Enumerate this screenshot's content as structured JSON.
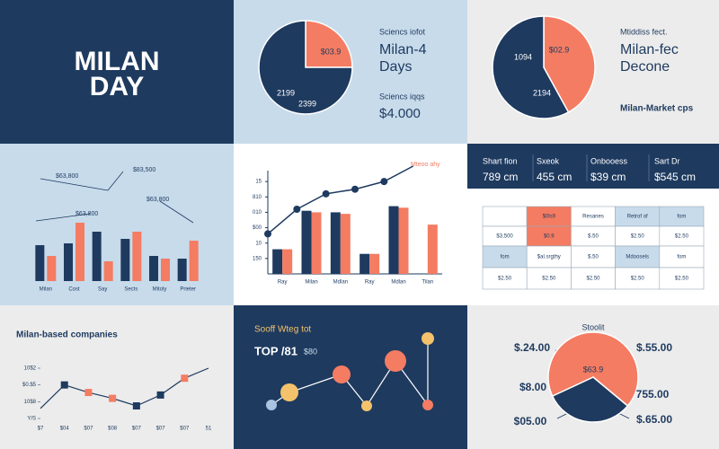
{
  "hero": {
    "title_line1": "MILAN",
    "title_line2": "DAY"
  },
  "panel2": {
    "kicker": "Sciencs iofot",
    "title_line1": "Milan-4",
    "title_line2": "Days",
    "note": "Sciencs iqqs",
    "amount": "$4.000"
  },
  "panel3": {
    "kicker": "Mtiddiss fect.",
    "title_line1": "Milan-fec",
    "title_line2": "Decone",
    "note": "Milan-Market cps"
  },
  "stats": [
    {
      "label": "Shart fion",
      "value": "789 cm"
    },
    {
      "label": "Sxeok",
      "value": "455 cm"
    },
    {
      "label": "Onbooess",
      "value": "$39 cm"
    },
    {
      "label": "Sart Dr",
      "value": "$545 cm"
    }
  ],
  "table": {
    "header": [
      "$0ls9",
      "Resanes",
      "Retrof of",
      "fom"
    ],
    "rows": [
      [
        "$3,500",
        "$0.9",
        "$.50",
        "$2.50",
        "$2.50"
      ],
      [
        "fom",
        "$al.srgthy",
        "$.50",
        "Mdoosels",
        "fom"
      ],
      [
        "$2.50",
        "$2.50",
        "$2.50",
        "$2.50",
        "$2.50"
      ]
    ]
  },
  "chart_data": [
    {
      "type": "pie",
      "values": [
        25,
        75
      ],
      "colors": [
        "#f47c62",
        "#1e3a5f"
      ],
      "annotations": [
        "$03.9",
        "2199",
        "2399"
      ]
    },
    {
      "type": "pie",
      "values": [
        42,
        58
      ],
      "colors": [
        "#f47c62",
        "#1e3a5f"
      ],
      "annotations": [
        "$02.9",
        "1094",
        "2194"
      ]
    },
    {
      "type": "bar",
      "categories": [
        "Milan",
        "Cost",
        "Say",
        "Sects",
        "Mitoly",
        "Prieter"
      ],
      "series": [
        {
          "color": "#1e3a5f",
          "values": [
            40,
            42,
            55,
            47,
            28,
            25
          ]
        },
        {
          "color": "#f47c62",
          "values": [
            28,
            65,
            22,
            55,
            25,
            45
          ]
        }
      ],
      "ylim": [
        0,
        70
      ],
      "annotations": [
        "$63,800",
        "$83,500",
        "$63,800",
        "$63,800"
      ]
    },
    {
      "type": "combo",
      "categories": [
        "Ray",
        "Milan",
        "Mdlan",
        "Ray",
        "Mdlan",
        "Tilan"
      ],
      "series": [
        {
          "color": "#1e3a5f",
          "values": [
            1.6,
            4.1,
            4.0,
            1.3,
            4.4,
            null
          ]
        },
        {
          "color": "#f47c62",
          "values": [
            1.6,
            4.0,
            3.9,
            1.3,
            4.3,
            3.2
          ]
        }
      ],
      "line": {
        "color": "#1e3a5f",
        "values": [
          2.6,
          4.2,
          5.2,
          5.5,
          6.0,
          7.0
        ]
      },
      "ylim": [
        0,
        7
      ],
      "yticks": [
        {
          "value": 1,
          "label": "150"
        },
        {
          "value": 2,
          "label": "10"
        },
        {
          "value": 3,
          "label": "$00"
        },
        {
          "value": 4,
          "label": "010"
        },
        {
          "value": 5,
          "label": "810"
        },
        {
          "value": 6,
          "label": "15"
        }
      ],
      "annotation": "Mteoo ahy"
    },
    {
      "type": "line",
      "title": "Milan-based companies",
      "categories": [
        "$7",
        "$04",
        "$07",
        "$08",
        "$07",
        "$07",
        "$07",
        "51"
      ],
      "values": [
        0.6,
        2.0,
        1.55,
        1.2,
        0.75,
        1.4,
        2.4,
        3.0
      ],
      "point_colors": [
        null,
        "#1e3a5f",
        "#f47c62",
        "#f47c62",
        "#1e3a5f",
        "#1e3a5f",
        "#f47c62",
        null
      ],
      "color": "#1e3a5f",
      "ylim": [
        0,
        3
      ],
      "yticks": [
        {
          "value": 0,
          "label": "Y/S"
        },
        {
          "value": 1,
          "label": "10$8"
        },
        {
          "value": 2,
          "label": "$0.$5"
        },
        {
          "value": 3,
          "label": "10$2"
        }
      ]
    },
    {
      "type": "scatter",
      "subtitle": "Sooff Wteg tot",
      "title": "TOP /81",
      "title_note": "$80",
      "x": [
        1.1,
        2.1,
        5.0,
        6.4,
        8.0,
        9.8,
        9.8
      ],
      "values": [
        1.9,
        3.3,
        5.3,
        1.8,
        6.8,
        1.9,
        9.3
      ],
      "sizes": [
        6,
        10,
        10,
        6,
        12,
        6,
        7
      ],
      "colors": [
        "#a9c4e0",
        "#f3c26b",
        "#f47c62",
        "#f3c26b",
        "#f47c62",
        "#f47c62",
        "#f3c26b"
      ],
      "line_color": "#ffffff",
      "xlim": [
        0,
        11
      ],
      "ylim": [
        0,
        10
      ]
    },
    {
      "type": "pie",
      "values": [
        68,
        32
      ],
      "colors": [
        "#f47c62",
        "#1e3a5f"
      ],
      "annotations": [
        "Stoolit",
        "$63.9",
        "$.24.00",
        "$.55.00",
        "$8.00",
        "755.00",
        "$05.00",
        "$.65.00"
      ]
    }
  ]
}
